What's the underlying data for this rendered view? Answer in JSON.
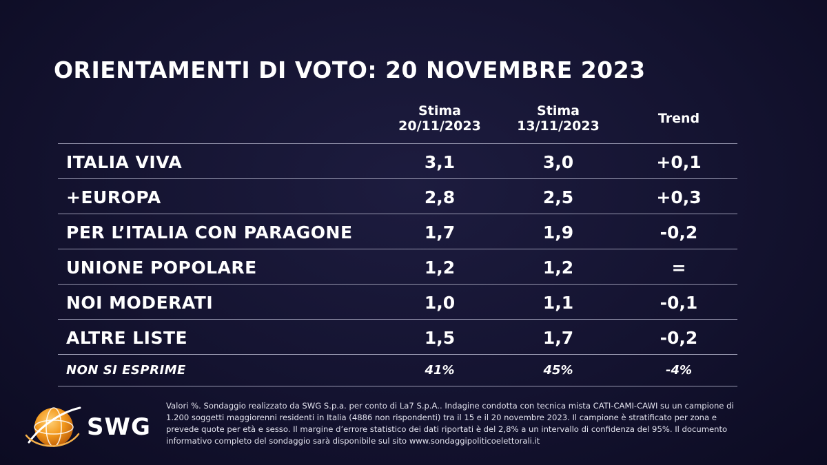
{
  "title": "ORIENTAMENTI DI VOTO: 20 NOVEMBRE 2023",
  "columns": {
    "col1_line1": "Stima",
    "col1_line2": "20/11/2023",
    "col2_line1": "Stima",
    "col2_line2": "13/11/2023",
    "col3": "Trend"
  },
  "rows": [
    {
      "party": "ITALIA VIVA",
      "v1": "3,1",
      "v2": "3,0",
      "trend": "+0,1"
    },
    {
      "party": "+EUROPA",
      "v1": "2,8",
      "v2": "2,5",
      "trend": "+0,3"
    },
    {
      "party": "PER L’ITALIA CON PARAGONE",
      "v1": "1,7",
      "v2": "1,9",
      "trend": "-0,2"
    },
    {
      "party": "UNIONE POPOLARE",
      "v1": "1,2",
      "v2": "1,2",
      "trend": "="
    },
    {
      "party": "NOI MODERATI",
      "v1": "1,0",
      "v2": "1,1",
      "trend": "-0,1"
    },
    {
      "party": "ALTRE LISTE",
      "v1": "1,5",
      "v2": "1,7",
      "trend": "-0,2"
    },
    {
      "party": "NON SI ESPRIME",
      "v1": "41%",
      "v2": "45%",
      "trend": "-4%"
    }
  ],
  "footer": {
    "logo_text": "SWG",
    "logo_icon": "globe-icon",
    "note": "Valori %. Sondaggio realizzato da SWG S.p.a. per conto di La7 S.p.A.. Indagine condotta con tecnica mista CATI-CAMI-CAWI su un campione di 1.200 soggetti maggiorenni residenti in Italia (4886 non rispondenti) tra il 15 e il 20 novembre 2023. Il campione è stratificato per zona e prevede quote per età e sesso. Il margine d’errore statistico dei dati riportati è del 2,8% a un intervallo di confidenza del 95%. Il documento informativo completo del sondaggio sarà disponibile sul sito www.sondaggipoliticoelettorali.it"
  },
  "colors": {
    "background": "#141330",
    "text": "#ffffff",
    "divider": "#9b9bb3",
    "logo_orange": "#f39a1e"
  }
}
